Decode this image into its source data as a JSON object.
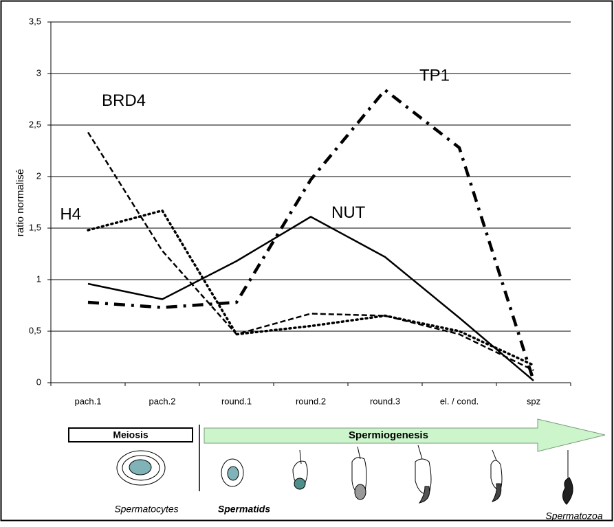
{
  "chart_data": {
    "type": "line",
    "y_label": "ratio normalisé",
    "categories": [
      "pach.1",
      "pach.2",
      "round.1",
      "round.2",
      "round.3",
      "el. / cond.",
      "spz"
    ],
    "series": [
      {
        "name": "H4",
        "color": "#000000",
        "style": "dotted",
        "values": [
          1.48,
          1.67,
          0.47,
          0.55,
          0.65,
          0.5,
          0.17
        ]
      },
      {
        "name": "BRD4",
        "color": "#000000",
        "style": "dashed",
        "values": [
          2.43,
          1.28,
          0.47,
          0.67,
          0.65,
          0.47,
          0.12
        ]
      },
      {
        "name": "NUT",
        "color": "#000000",
        "style": "solid",
        "values": [
          0.96,
          0.81,
          1.18,
          1.61,
          1.22,
          0.63,
          0.02
        ]
      },
      {
        "name": "TP1",
        "color": "#000000",
        "style": "dashdot",
        "values": [
          0.78,
          0.73,
          0.78,
          1.97,
          2.84,
          2.28,
          0.02
        ]
      }
    ],
    "ylim": [
      0,
      3.5
    ],
    "yticks": [
      0,
      {
        "value": 0.5,
        "label": "0,5"
      },
      1,
      {
        "value": 1.5,
        "label": "1,5"
      },
      2,
      {
        "value": 2.5,
        "label": "2,5"
      },
      3,
      {
        "value": 3.5,
        "label": "3,5"
      }
    ],
    "grid": true
  },
  "diagram": {
    "phases": [
      "Meiosis",
      "Spermiogenesis"
    ],
    "cell_types": [
      "Spermatocytes",
      "Spermatids",
      "Spermatozoa"
    ]
  }
}
